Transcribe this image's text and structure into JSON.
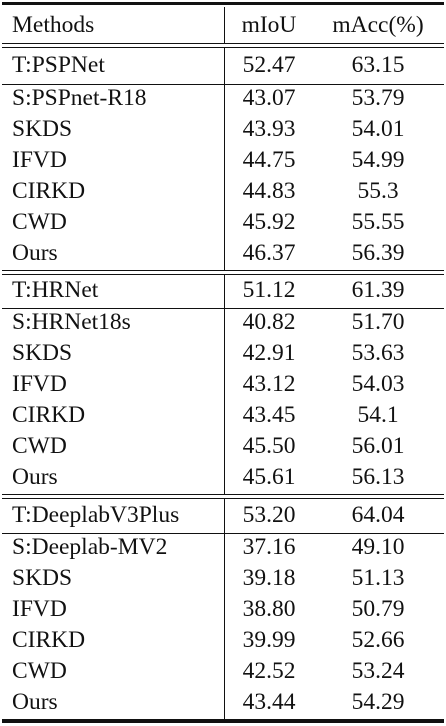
{
  "table": {
    "headers": [
      "Methods",
      "mIoU",
      "mAcc(%)"
    ],
    "groups": [
      {
        "teacher": [
          "T:PSPNet",
          "52.47",
          "63.15"
        ],
        "rows": [
          [
            "S:PSPnet-R18",
            "43.07",
            "53.79"
          ],
          [
            "SKDS",
            "43.93",
            "54.01"
          ],
          [
            "IFVD",
            "44.75",
            "54.99"
          ],
          [
            "CIRKD",
            "44.83",
            "55.3"
          ],
          [
            "CWD",
            "45.92",
            "55.55"
          ],
          [
            "Ours",
            "46.37",
            "56.39"
          ]
        ]
      },
      {
        "teacher": [
          "T:HRNet",
          "51.12",
          "61.39"
        ],
        "rows": [
          [
            "S:HRNet18s",
            "40.82",
            "51.70"
          ],
          [
            "SKDS",
            "42.91",
            "53.63"
          ],
          [
            "IFVD",
            "43.12",
            "54.03"
          ],
          [
            "CIRKD",
            "43.45",
            "54.1"
          ],
          [
            "CWD",
            "45.50",
            "56.01"
          ],
          [
            "Ours",
            "45.61",
            "56.13"
          ]
        ]
      },
      {
        "teacher": [
          "T:DeeplabV3Plus",
          "53.20",
          "64.04"
        ],
        "rows": [
          [
            "S:Deeplab-MV2",
            "37.16",
            "49.10"
          ],
          [
            "SKDS",
            "39.18",
            "51.13"
          ],
          [
            "IFVD",
            "38.80",
            "50.79"
          ],
          [
            "CIRKD",
            "39.99",
            "52.66"
          ],
          [
            "CWD",
            "42.52",
            "53.24"
          ],
          [
            "Ours",
            "43.44",
            "54.29"
          ]
        ]
      }
    ]
  }
}
